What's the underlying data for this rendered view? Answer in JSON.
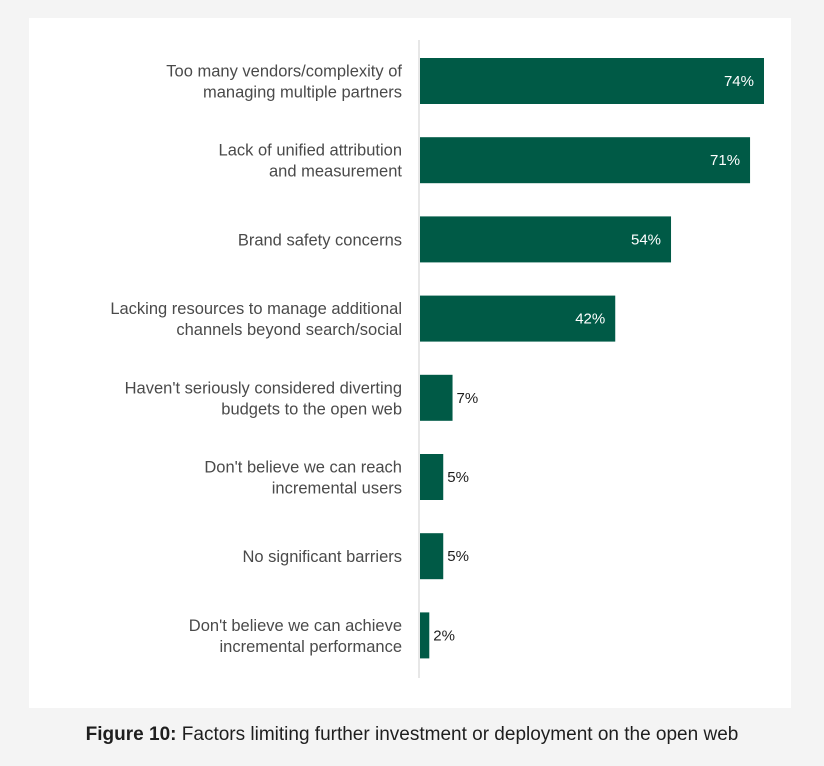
{
  "caption": {
    "label": "Figure 10:",
    "text": "Factors limiting further investment or deployment on the open web"
  },
  "chart_data": {
    "type": "bar",
    "orientation": "horizontal",
    "categories": [
      [
        "Too many vendors/complexity of",
        "managing multiple partners"
      ],
      [
        "Lack of unified attribution",
        "and measurement"
      ],
      [
        "Brand safety concerns"
      ],
      [
        "Lacking resources to manage additional",
        "channels beyond search/social"
      ],
      [
        "Haven't seriously considered diverting",
        "budgets to the open web"
      ],
      [
        "Don't believe we can reach",
        "incremental users"
      ],
      [
        "No significant barriers"
      ],
      [
        "Don't believe we can achieve",
        "incremental performance"
      ]
    ],
    "values": [
      74,
      71,
      54,
      42,
      7,
      5,
      5,
      2
    ],
    "value_labels": [
      "74%",
      "71%",
      "54%",
      "42%",
      "7%",
      "5%",
      "5%",
      "2%"
    ],
    "xlim": [
      0,
      74
    ],
    "grid": false,
    "bar_color": "#005a46"
  }
}
